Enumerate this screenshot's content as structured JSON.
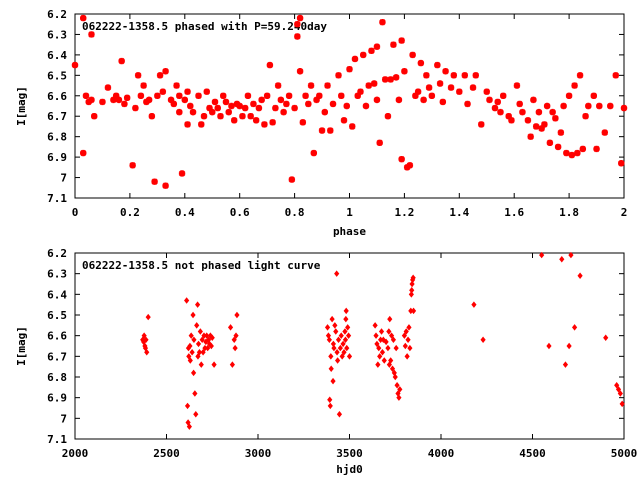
{
  "chart_data": [
    {
      "type": "scatter",
      "title": "062222-1358.5 phased with P=59.240day",
      "xlabel": "phase",
      "ylabel": "I[mag]",
      "xlim": [
        0,
        2
      ],
      "ylim": [
        6.2,
        7.1
      ],
      "y_inverted": true,
      "grid": false,
      "marker": "star",
      "marker_color": "#ff0000",
      "xticks": [
        "0",
        "0.2",
        "0.4",
        "0.6",
        "0.8",
        "1",
        "1.2",
        "1.4",
        "1.6",
        "1.8",
        "2"
      ],
      "yticks": [
        "6.2",
        "6.3",
        "6.4",
        "6.5",
        "6.6",
        "6.7",
        "6.8",
        "6.9",
        "7",
        "7.1"
      ],
      "points": [
        [
          0.0,
          6.45
        ],
        [
          0.03,
          6.22
        ],
        [
          0.03,
          6.88
        ],
        [
          0.04,
          6.6
        ],
        [
          0.05,
          6.63
        ],
        [
          0.06,
          6.3
        ],
        [
          0.06,
          6.62
        ],
        [
          0.07,
          6.7
        ],
        [
          0.1,
          6.63
        ],
        [
          0.12,
          6.56
        ],
        [
          0.14,
          6.62
        ],
        [
          0.15,
          6.6
        ],
        [
          0.16,
          6.62
        ],
        [
          0.17,
          6.43
        ],
        [
          0.18,
          6.64
        ],
        [
          0.19,
          6.61
        ],
        [
          0.21,
          6.94
        ],
        [
          0.22,
          6.66
        ],
        [
          0.23,
          6.5
        ],
        [
          0.24,
          6.6
        ],
        [
          0.25,
          6.55
        ],
        [
          0.26,
          6.63
        ],
        [
          0.27,
          6.62
        ],
        [
          0.28,
          6.7
        ],
        [
          0.29,
          7.02
        ],
        [
          0.3,
          6.6
        ],
        [
          0.31,
          6.5
        ],
        [
          0.32,
          6.58
        ],
        [
          0.33,
          6.48
        ],
        [
          0.33,
          7.04
        ],
        [
          0.35,
          6.62
        ],
        [
          0.36,
          6.64
        ],
        [
          0.37,
          6.55
        ],
        [
          0.38,
          6.6
        ],
        [
          0.38,
          6.68
        ],
        [
          0.39,
          6.98
        ],
        [
          0.4,
          6.62
        ],
        [
          0.41,
          6.58
        ],
        [
          0.41,
          6.74
        ],
        [
          0.42,
          6.65
        ],
        [
          0.43,
          6.68
        ],
        [
          0.45,
          6.6
        ],
        [
          0.46,
          6.74
        ],
        [
          0.47,
          6.7
        ],
        [
          0.48,
          6.58
        ],
        [
          0.49,
          6.66
        ],
        [
          0.5,
          6.68
        ],
        [
          0.51,
          6.63
        ],
        [
          0.52,
          6.66
        ],
        [
          0.53,
          6.7
        ],
        [
          0.54,
          6.6
        ],
        [
          0.55,
          6.63
        ],
        [
          0.56,
          6.68
        ],
        [
          0.57,
          6.65
        ],
        [
          0.58,
          6.72
        ],
        [
          0.59,
          6.64
        ],
        [
          0.6,
          6.65
        ],
        [
          0.61,
          6.7
        ],
        [
          0.62,
          6.66
        ],
        [
          0.63,
          6.6
        ],
        [
          0.64,
          6.7
        ],
        [
          0.65,
          6.64
        ],
        [
          0.66,
          6.72
        ],
        [
          0.67,
          6.66
        ],
        [
          0.68,
          6.62
        ],
        [
          0.69,
          6.74
        ],
        [
          0.7,
          6.6
        ],
        [
          0.71,
          6.45
        ],
        [
          0.72,
          6.73
        ],
        [
          0.73,
          6.66
        ],
        [
          0.74,
          6.55
        ],
        [
          0.75,
          6.62
        ],
        [
          0.76,
          6.68
        ],
        [
          0.77,
          6.64
        ],
        [
          0.78,
          6.6
        ],
        [
          0.79,
          7.01
        ],
        [
          0.8,
          6.66
        ],
        [
          0.81,
          6.25
        ],
        [
          0.81,
          6.31
        ],
        [
          0.82,
          6.48
        ],
        [
          0.82,
          6.22
        ],
        [
          0.83,
          6.73
        ],
        [
          0.84,
          6.6
        ],
        [
          0.85,
          6.64
        ],
        [
          0.86,
          6.55
        ],
        [
          0.87,
          6.88
        ],
        [
          0.88,
          6.62
        ],
        [
          0.89,
          6.6
        ],
        [
          0.9,
          6.77
        ],
        [
          0.91,
          6.68
        ],
        [
          0.92,
          6.55
        ],
        [
          0.93,
          6.77
        ],
        [
          0.94,
          6.64
        ],
        [
          0.96,
          6.5
        ],
        [
          0.97,
          6.6
        ],
        [
          0.98,
          6.72
        ],
        [
          0.99,
          6.65
        ],
        [
          1.0,
          6.47
        ],
        [
          1.01,
          6.75
        ],
        [
          1.02,
          6.42
        ],
        [
          1.03,
          6.6
        ],
        [
          1.04,
          6.58
        ],
        [
          1.05,
          6.4
        ],
        [
          1.06,
          6.65
        ],
        [
          1.07,
          6.55
        ],
        [
          1.08,
          6.38
        ],
        [
          1.09,
          6.54
        ],
        [
          1.1,
          6.62
        ],
        [
          1.1,
          6.36
        ],
        [
          1.11,
          6.83
        ],
        [
          1.12,
          6.24
        ],
        [
          1.13,
          6.52
        ],
        [
          1.14,
          6.7
        ],
        [
          1.15,
          6.52
        ],
        [
          1.16,
          6.35
        ],
        [
          1.17,
          6.51
        ],
        [
          1.18,
          6.62
        ],
        [
          1.19,
          6.91
        ],
        [
          1.19,
          6.33
        ],
        [
          1.2,
          6.48
        ],
        [
          1.21,
          6.95
        ],
        [
          1.22,
          6.94
        ],
        [
          1.23,
          6.4
        ],
        [
          1.24,
          6.6
        ],
        [
          1.25,
          6.58
        ],
        [
          1.26,
          6.44
        ],
        [
          1.27,
          6.62
        ],
        [
          1.28,
          6.5
        ],
        [
          1.29,
          6.56
        ],
        [
          1.3,
          6.6
        ],
        [
          1.32,
          6.45
        ],
        [
          1.33,
          6.54
        ],
        [
          1.34,
          6.63
        ],
        [
          1.35,
          6.48
        ],
        [
          1.37,
          6.56
        ],
        [
          1.38,
          6.5
        ],
        [
          1.4,
          6.58
        ],
        [
          1.42,
          6.5
        ],
        [
          1.43,
          6.64
        ],
        [
          1.45,
          6.56
        ],
        [
          1.46,
          6.5
        ],
        [
          1.48,
          6.74
        ],
        [
          1.5,
          6.58
        ],
        [
          1.51,
          6.62
        ],
        [
          1.53,
          6.66
        ],
        [
          1.54,
          6.63
        ],
        [
          1.55,
          6.68
        ],
        [
          1.56,
          6.6
        ],
        [
          1.58,
          6.7
        ],
        [
          1.59,
          6.72
        ],
        [
          1.61,
          6.55
        ],
        [
          1.62,
          6.64
        ],
        [
          1.63,
          6.68
        ],
        [
          1.65,
          6.72
        ],
        [
          1.66,
          6.8
        ],
        [
          1.67,
          6.62
        ],
        [
          1.68,
          6.75
        ],
        [
          1.69,
          6.68
        ],
        [
          1.7,
          6.76
        ],
        [
          1.71,
          6.74
        ],
        [
          1.72,
          6.65
        ],
        [
          1.73,
          6.83
        ],
        [
          1.74,
          6.68
        ],
        [
          1.75,
          6.71
        ],
        [
          1.76,
          6.85
        ],
        [
          1.77,
          6.78
        ],
        [
          1.78,
          6.65
        ],
        [
          1.79,
          6.88
        ],
        [
          1.8,
          6.6
        ],
        [
          1.81,
          6.89
        ],
        [
          1.82,
          6.55
        ],
        [
          1.83,
          6.88
        ],
        [
          1.84,
          6.5
        ],
        [
          1.85,
          6.86
        ],
        [
          1.86,
          6.7
        ],
        [
          1.87,
          6.65
        ],
        [
          1.89,
          6.6
        ],
        [
          1.9,
          6.86
        ],
        [
          1.91,
          6.65
        ],
        [
          1.93,
          6.78
        ],
        [
          1.95,
          6.65
        ],
        [
          1.97,
          6.5
        ],
        [
          1.99,
          6.93
        ],
        [
          2.0,
          6.66
        ]
      ]
    },
    {
      "type": "scatter",
      "title": "062222-1358.5 not phased light curve",
      "xlabel": "hjd0",
      "ylabel": "I[mag]",
      "xlim": [
        2000,
        5000
      ],
      "ylim": [
        6.2,
        7.1
      ],
      "y_inverted": true,
      "grid": false,
      "marker": "diamond",
      "marker_color": "#ff0000",
      "xticks": [
        "2000",
        "2500",
        "3000",
        "3500",
        "4000",
        "4500",
        "5000"
      ],
      "yticks": [
        "6.2",
        "6.3",
        "6.4",
        "6.5",
        "6.6",
        "6.7",
        "6.8",
        "6.9",
        "7",
        "7.1"
      ],
      "points": [
        [
          2370,
          6.62
        ],
        [
          2375,
          6.63
        ],
        [
          2378,
          6.6
        ],
        [
          2382,
          6.65
        ],
        [
          2385,
          6.66
        ],
        [
          2388,
          6.62
        ],
        [
          2392,
          6.68
        ],
        [
          2400,
          6.51
        ],
        [
          2610,
          6.43
        ],
        [
          2615,
          6.94
        ],
        [
          2618,
          7.02
        ],
        [
          2620,
          6.66
        ],
        [
          2622,
          6.7
        ],
        [
          2625,
          7.04
        ],
        [
          2628,
          6.65
        ],
        [
          2630,
          6.72
        ],
        [
          2635,
          6.6
        ],
        [
          2640,
          6.68
        ],
        [
          2645,
          6.5
        ],
        [
          2648,
          6.78
        ],
        [
          2650,
          6.62
        ],
        [
          2655,
          6.88
        ],
        [
          2660,
          6.98
        ],
        [
          2665,
          6.55
        ],
        [
          2670,
          6.45
        ],
        [
          2672,
          6.7
        ],
        [
          2675,
          6.64
        ],
        [
          2680,
          6.68
        ],
        [
          2685,
          6.58
        ],
        [
          2690,
          6.74
        ],
        [
          2695,
          6.62
        ],
        [
          2700,
          6.68
        ],
        [
          2705,
          6.6
        ],
        [
          2710,
          6.66
        ],
        [
          2715,
          6.63
        ],
        [
          2720,
          6.6
        ],
        [
          2725,
          6.66
        ],
        [
          2730,
          6.62
        ],
        [
          2735,
          6.64
        ],
        [
          2740,
          6.6
        ],
        [
          2745,
          6.65
        ],
        [
          2750,
          6.61
        ],
        [
          2760,
          6.74
        ],
        [
          2850,
          6.56
        ],
        [
          2860,
          6.74
        ],
        [
          2870,
          6.62
        ],
        [
          2875,
          6.66
        ],
        [
          2880,
          6.6
        ],
        [
          2885,
          6.5
        ],
        [
          3380,
          6.56
        ],
        [
          3385,
          6.6
        ],
        [
          3390,
          6.62
        ],
        [
          3392,
          6.91
        ],
        [
          3395,
          6.94
        ],
        [
          3398,
          6.7
        ],
        [
          3400,
          6.76
        ],
        [
          3405,
          6.52
        ],
        [
          3410,
          6.82
        ],
        [
          3412,
          6.64
        ],
        [
          3415,
          6.66
        ],
        [
          3420,
          6.55
        ],
        [
          3425,
          6.58
        ],
        [
          3430,
          6.3
        ],
        [
          3432,
          6.68
        ],
        [
          3435,
          6.72
        ],
        [
          3440,
          6.62
        ],
        [
          3445,
          6.98
        ],
        [
          3450,
          6.66
        ],
        [
          3455,
          6.6
        ],
        [
          3460,
          6.7
        ],
        [
          3465,
          6.64
        ],
        [
          3470,
          6.68
        ],
        [
          3475,
          6.58
        ],
        [
          3478,
          6.62
        ],
        [
          3480,
          6.52
        ],
        [
          3482,
          6.48
        ],
        [
          3485,
          6.66
        ],
        [
          3490,
          6.56
        ],
        [
          3495,
          6.6
        ],
        [
          3500,
          6.7
        ],
        [
          3640,
          6.55
        ],
        [
          3645,
          6.6
        ],
        [
          3650,
          6.64
        ],
        [
          3655,
          6.74
        ],
        [
          3660,
          6.66
        ],
        [
          3665,
          6.7
        ],
        [
          3670,
          6.62
        ],
        [
          3675,
          6.58
        ],
        [
          3680,
          6.68
        ],
        [
          3685,
          6.62
        ],
        [
          3690,
          6.72
        ],
        [
          3700,
          6.63
        ],
        [
          3710,
          6.66
        ],
        [
          3715,
          6.58
        ],
        [
          3718,
          6.74
        ],
        [
          3720,
          6.52
        ],
        [
          3725,
          6.72
        ],
        [
          3730,
          6.6
        ],
        [
          3735,
          6.76
        ],
        [
          3740,
          6.62
        ],
        [
          3745,
          6.78
        ],
        [
          3750,
          6.8
        ],
        [
          3755,
          6.66
        ],
        [
          3760,
          6.84
        ],
        [
          3765,
          6.88
        ],
        [
          3770,
          6.9
        ],
        [
          3775,
          6.86
        ],
        [
          3800,
          6.6
        ],
        [
          3805,
          6.65
        ],
        [
          3810,
          6.58
        ],
        [
          3815,
          6.7
        ],
        [
          3820,
          6.62
        ],
        [
          3825,
          6.56
        ],
        [
          3830,
          6.66
        ],
        [
          3835,
          6.48
        ],
        [
          3838,
          6.4
        ],
        [
          3840,
          6.38
        ],
        [
          3842,
          6.35
        ],
        [
          3845,
          6.33
        ],
        [
          3848,
          6.32
        ],
        [
          3850,
          6.48
        ],
        [
          4180,
          6.45
        ],
        [
          4230,
          6.62
        ],
        [
          4550,
          6.21
        ],
        [
          4590,
          6.65
        ],
        [
          4660,
          6.23
        ],
        [
          4680,
          6.74
        ],
        [
          4700,
          6.65
        ],
        [
          4710,
          6.21
        ],
        [
          4730,
          6.56
        ],
        [
          4760,
          6.31
        ],
        [
          4900,
          6.61
        ],
        [
          4960,
          6.84
        ],
        [
          4970,
          6.86
        ],
        [
          4980,
          6.88
        ],
        [
          4990,
          6.93
        ]
      ]
    }
  ]
}
